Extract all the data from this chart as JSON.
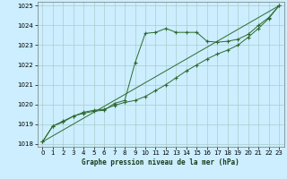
{
  "title": "Graphe pression niveau de la mer (hPa)",
  "bg_color": "#cceeff",
  "grid_color": "#aacccc",
  "line_color": "#2d6a2d",
  "x_min": 0,
  "x_max": 23,
  "y_min": 1018,
  "y_max": 1025,
  "y_ticks": [
    1018,
    1019,
    1020,
    1021,
    1022,
    1023,
    1024,
    1025
  ],
  "x_ticks": [
    0,
    1,
    2,
    3,
    4,
    5,
    6,
    7,
    8,
    9,
    10,
    11,
    12,
    13,
    14,
    15,
    16,
    17,
    18,
    19,
    20,
    21,
    22,
    23
  ],
  "line1_x": [
    0,
    1,
    2,
    3,
    4,
    5,
    6,
    7,
    8,
    9,
    10,
    11,
    12,
    13,
    14,
    15,
    16,
    17,
    18,
    19,
    20,
    21,
    22,
    23
  ],
  "line1_y": [
    1018.1,
    1018.9,
    1019.1,
    1019.4,
    1019.55,
    1019.65,
    1019.7,
    1020.05,
    1020.2,
    1022.1,
    1023.6,
    1023.65,
    1023.85,
    1023.65,
    1023.65,
    1023.65,
    1023.2,
    1023.15,
    1023.2,
    1023.3,
    1023.55,
    1024.0,
    1024.4,
    1025.0
  ],
  "line2_x": [
    0,
    1,
    2,
    3,
    4,
    5,
    6,
    7,
    8,
    9,
    10,
    11,
    12,
    13,
    14,
    15,
    16,
    17,
    18,
    19,
    20,
    21,
    22,
    23
  ],
  "line2_y": [
    1018.1,
    1018.9,
    1019.15,
    1019.4,
    1019.6,
    1019.7,
    1019.75,
    1019.95,
    1020.1,
    1020.2,
    1020.4,
    1020.7,
    1021.0,
    1021.35,
    1021.7,
    1022.0,
    1022.3,
    1022.55,
    1022.75,
    1023.0,
    1023.4,
    1023.85,
    1024.35,
    1025.0
  ],
  "line3_x": [
    0,
    23
  ],
  "line3_y": [
    1018.1,
    1025.0
  ]
}
